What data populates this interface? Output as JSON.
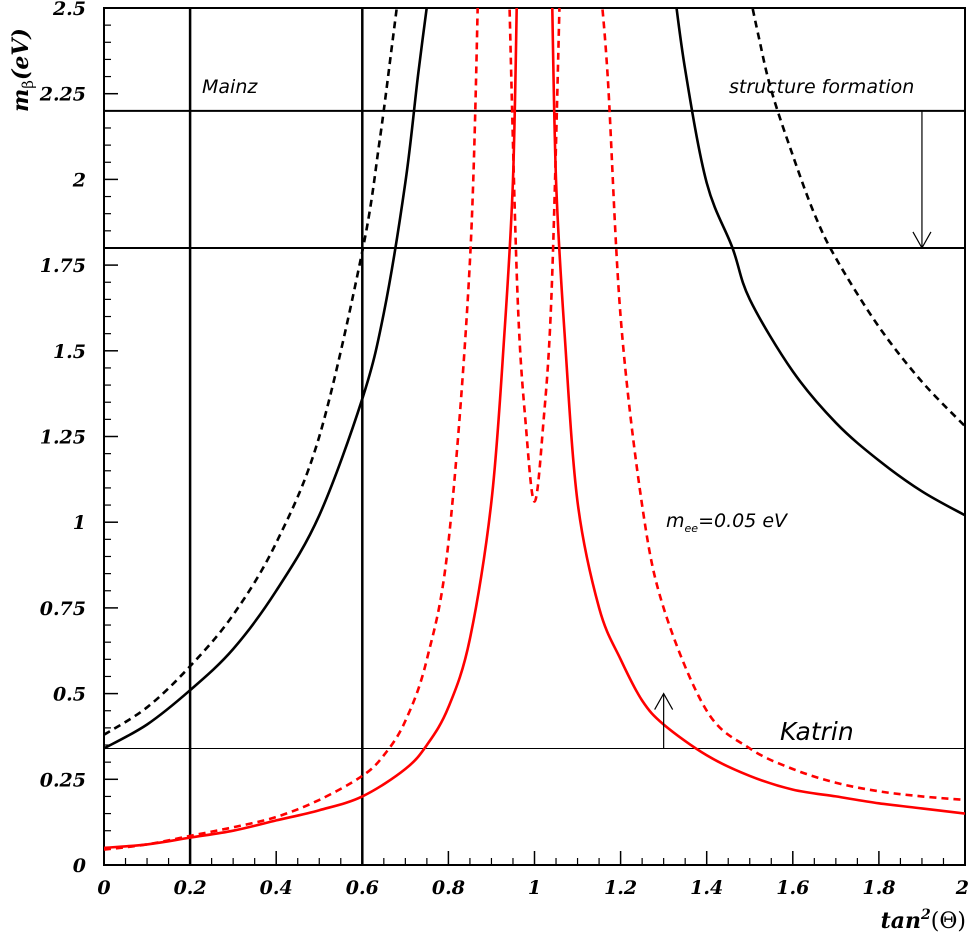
{
  "chart_data": {
    "type": "line",
    "xlabel": "tan",
    "xlabel_sup": "2",
    "xlabel_arg": "(Θ)",
    "ylabel": "(eV)",
    "ylabel_sym": "m",
    "ylabel_sub": "β",
    "xlim": [
      0,
      2
    ],
    "ylim": [
      0,
      2.5
    ],
    "x_ticks": [
      0,
      0.2,
      0.4,
      0.6,
      0.8,
      1,
      1.2,
      1.4,
      1.6,
      1.8,
      2
    ],
    "x_tick_labels": [
      "0",
      "0.2",
      "0.4",
      "0.6",
      "0.8",
      "1",
      "1.2",
      "1.4",
      "1.6",
      "1.8",
      "2"
    ],
    "y_ticks": [
      0,
      0.25,
      0.5,
      0.75,
      1,
      1.25,
      1.5,
      1.75,
      2,
      2.25,
      2.5
    ],
    "y_tick_labels": [
      "0",
      "0.25",
      "0.5",
      "0.75",
      "1",
      "1.25",
      "1.5",
      "1.75",
      "2",
      "2.25",
      "2.5"
    ],
    "grid": false,
    "colors": {
      "black": "#000000",
      "red": "#ff0000"
    },
    "series": [
      {
        "color": "#000000",
        "dash": false,
        "x": [
          0,
          0.1,
          0.2,
          0.3,
          0.4,
          0.5,
          0.6,
          0.65,
          0.7,
          0.73,
          0.76
        ],
        "y": [
          0.34,
          0.41,
          0.51,
          0.63,
          0.8,
          1.02,
          1.36,
          1.61,
          1.99,
          2.31,
          2.6
        ]
      },
      {
        "color": "#000000",
        "dash": false,
        "x": [
          1.32,
          1.35,
          1.4,
          1.46,
          1.5,
          1.6,
          1.7,
          1.8,
          1.9,
          2.0
        ],
        "y": [
          2.6,
          2.32,
          1.99,
          1.8,
          1.65,
          1.44,
          1.29,
          1.18,
          1.09,
          1.02
        ]
      },
      {
        "color": "#000000",
        "dash": true,
        "x": [
          0,
          0.1,
          0.2,
          0.3,
          0.4,
          0.5,
          0.6,
          0.64,
          0.67,
          0.69
        ],
        "y": [
          0.38,
          0.46,
          0.58,
          0.73,
          0.94,
          1.25,
          1.79,
          2.11,
          2.4,
          2.6
        ]
      },
      {
        "color": "#000000",
        "dash": true,
        "x": [
          1.49,
          1.52,
          1.55,
          1.6,
          1.65,
          1.7,
          1.8,
          1.9,
          2.0
        ],
        "y": [
          2.6,
          2.42,
          2.26,
          2.07,
          1.9,
          1.77,
          1.57,
          1.41,
          1.28
        ]
      },
      {
        "color": "#ff0000",
        "dash": false,
        "x": [
          0,
          0.1,
          0.2,
          0.3,
          0.4,
          0.5,
          0.6,
          0.7,
          0.75,
          0.8,
          0.85,
          0.9,
          0.93,
          0.95,
          0.96
        ],
        "y": [
          0.05,
          0.06,
          0.08,
          0.1,
          0.13,
          0.16,
          0.2,
          0.28,
          0.35,
          0.46,
          0.66,
          1.06,
          1.55,
          2.0,
          2.6
        ]
      },
      {
        "color": "#ff0000",
        "dash": false,
        "x": [
          1.04,
          1.05,
          1.07,
          1.1,
          1.15,
          1.2,
          1.25,
          1.3,
          1.4,
          1.5,
          1.6,
          1.7,
          1.8,
          1.9,
          2.0
        ],
        "y": [
          2.6,
          2.0,
          1.55,
          1.06,
          0.75,
          0.6,
          0.48,
          0.41,
          0.32,
          0.26,
          0.22,
          0.2,
          0.18,
          0.165,
          0.15
        ]
      },
      {
        "color": "#ff0000",
        "dash": true,
        "x": [
          0,
          0.1,
          0.2,
          0.3,
          0.4,
          0.5,
          0.6,
          0.65,
          0.7,
          0.75,
          0.8,
          0.85,
          0.87
        ],
        "y": [
          0.045,
          0.06,
          0.085,
          0.11,
          0.14,
          0.19,
          0.26,
          0.32,
          0.42,
          0.6,
          0.94,
          1.76,
          2.6
        ]
      },
      {
        "color": "#ff0000",
        "dash": true,
        "x": [
          0.94,
          0.96,
          0.98,
          1.0,
          1.02,
          1.04,
          1.06
        ],
        "y": [
          2.6,
          1.68,
          1.28,
          1.06,
          1.28,
          1.68,
          2.6
        ]
      },
      {
        "color": "#ff0000",
        "dash": true,
        "x": [
          1.15,
          1.17,
          1.2,
          1.25,
          1.3,
          1.4,
          1.5,
          1.6,
          1.7,
          1.8,
          1.9,
          2.0
        ],
        "y": [
          2.6,
          2.3,
          1.6,
          1.05,
          0.75,
          0.45,
          0.34,
          0.28,
          0.24,
          0.215,
          0.2,
          0.19
        ]
      }
    ],
    "hlines": [
      {
        "y": 2.2,
        "width": 2
      },
      {
        "y": 1.8,
        "width": 2
      },
      {
        "y": 0.34,
        "width": 1
      }
    ],
    "vlines": [
      {
        "x": 0.2
      },
      {
        "x": 0.6
      }
    ],
    "arrows": [
      {
        "x": 1.9,
        "from": 2.2,
        "to": 1.8
      },
      {
        "x": 1.3,
        "from": 0.34,
        "to": 0.5
      }
    ],
    "annotations": {
      "mainz": "Mainz",
      "structure": "structure formation",
      "katrin": "Katrin",
      "mee_m": "m",
      "mee_sub": "ee",
      "mee_val": "=0.05 eV"
    }
  }
}
